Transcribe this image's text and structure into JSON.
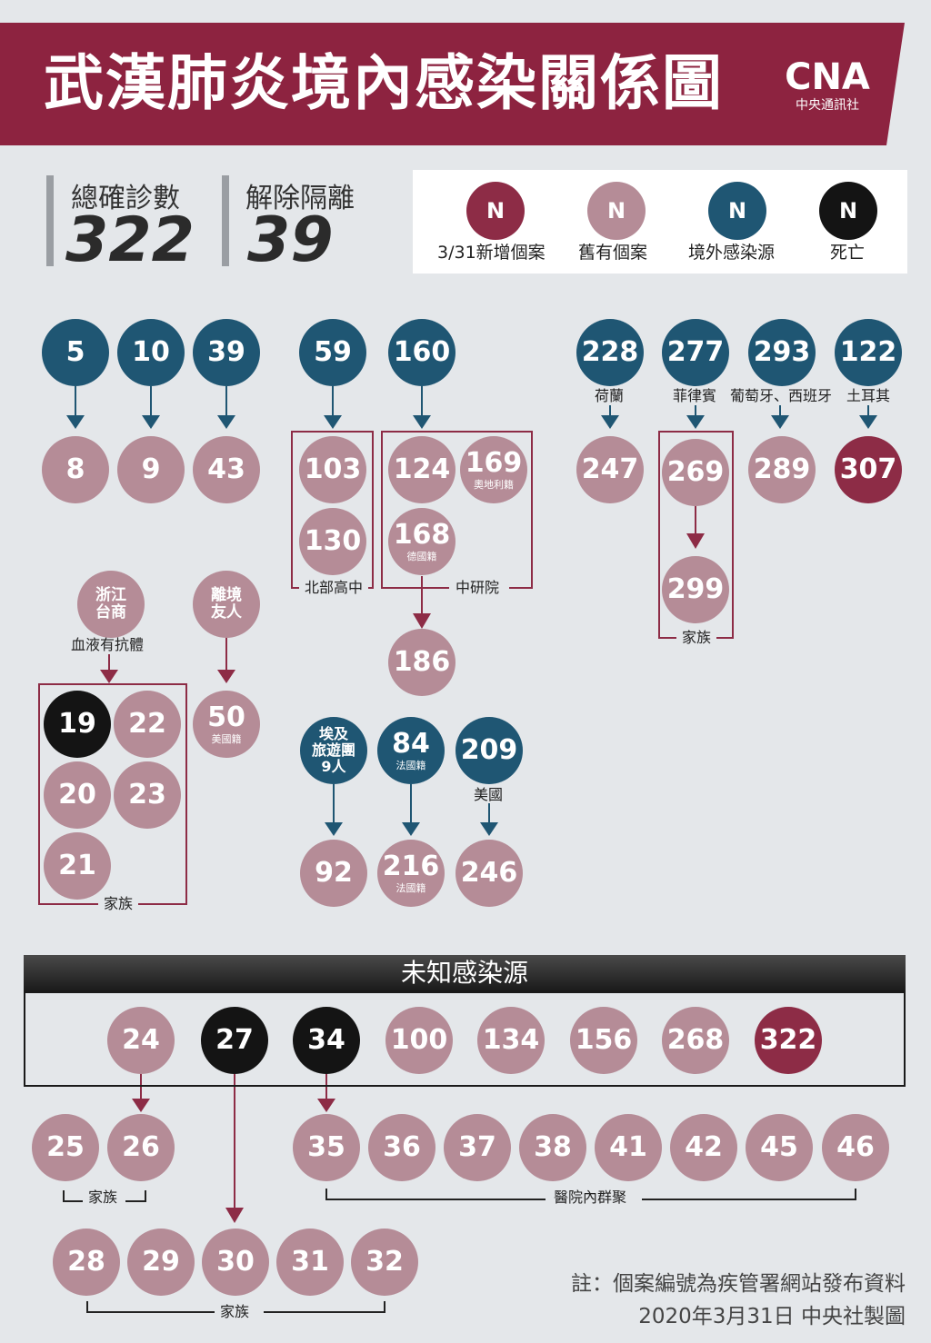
{
  "title": "武漢肺炎境內感染關係圖",
  "logo": {
    "letters": "CNA",
    "name": "中央通訊社"
  },
  "stats": [
    {
      "label": "總確診數",
      "value": "322"
    },
    {
      "label": "解除隔離",
      "value": "39"
    }
  ],
  "legend": [
    {
      "symbol": "N",
      "label": "3/31新增個案",
      "kind": "new"
    },
    {
      "symbol": "N",
      "label": "舊有個案",
      "kind": "old"
    },
    {
      "symbol": "N",
      "label": "境外感染源",
      "kind": "ext"
    },
    {
      "symbol": "N",
      "label": "死亡",
      "kind": "dead"
    }
  ],
  "colors": {
    "new": "#8d2c46",
    "old": "#b58c97",
    "ext": "#1f5673",
    "dead": "#141414",
    "banner": "#8d2340"
  },
  "nodes": {
    "n5": "5",
    "n10": "10",
    "n39": "39",
    "n59": "59",
    "n160": "160",
    "n228": "228",
    "n277": "277",
    "n293": "293",
    "n122": "122",
    "n8": "8",
    "n9": "9",
    "n43": "43",
    "n103": "103",
    "n130": "130",
    "n124": "124",
    "n169": "169",
    "n168": "168",
    "n186": "186",
    "n247": "247",
    "n269": "269",
    "n299": "299",
    "n289": "289",
    "n307": "307",
    "zj": "浙江\n台商",
    "lj": "離境\n友人",
    "n19": "19",
    "n22": "22",
    "n20": "20",
    "n23": "23",
    "n21": "21",
    "n50": "50",
    "egypt": "埃及\n旅遊團\n9人",
    "n84": "84",
    "n209": "209",
    "n92": "92",
    "n216": "216",
    "n246": "246",
    "n24": "24",
    "n27": "27",
    "n34": "34",
    "n100": "100",
    "n134": "134",
    "n156": "156",
    "n268": "268",
    "n322": "322",
    "n25": "25",
    "n26": "26",
    "n35": "35",
    "n36": "36",
    "n37": "37",
    "n38": "38",
    "n41": "41",
    "n42": "42",
    "n45": "45",
    "n46": "46",
    "n28": "28",
    "n29": "29",
    "n30": "30",
    "n31": "31",
    "n32": "32"
  },
  "subs": {
    "n169": "奧地利籍",
    "n168": "德國籍",
    "n50": "美國籍",
    "n84": "法國籍",
    "n216": "法國籍"
  },
  "labels": {
    "holland": "荷蘭",
    "philippines": "菲律賓",
    "portugal_spain": "葡萄牙、西班牙",
    "turkey": "土耳其",
    "north_school": "北部高中",
    "academia": "中研院",
    "family_269": "家族",
    "antibody": "血液有抗體",
    "family_19": "家族",
    "usa": "美國",
    "unknown_source": "未知感染源",
    "family_25": "家族",
    "hospital_cluster": "醫院內群聚",
    "family_28": "家族"
  },
  "notes": {
    "line1": "註：個案編號為疾管署網站發布資料",
    "line2": "2020年3月31日  中央社製圖"
  }
}
